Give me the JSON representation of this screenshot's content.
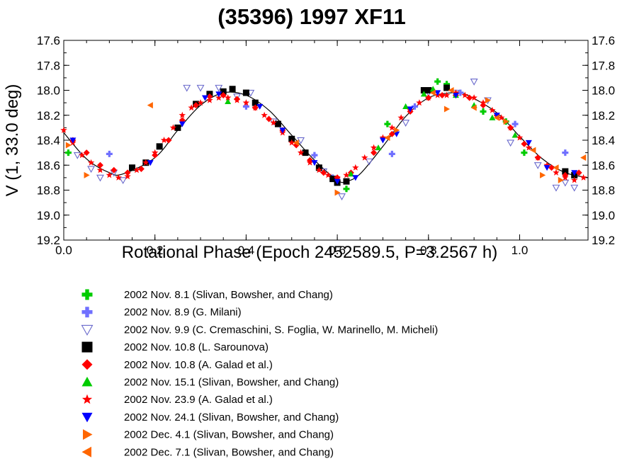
{
  "chart_data": {
    "type": "scatter",
    "title": "(35396) 1997 XF11",
    "xlabel": "Rotational Phase (Epoch 2452589.5, P=3.2567 h)",
    "ylabel": "V (1, 33.0 deg)",
    "xlim": [
      0.0,
      1.15
    ],
    "ylim": [
      17.6,
      19.2
    ],
    "y_inverted": true,
    "x_ticks": [
      "0.0",
      "0.2",
      "0.4",
      "0.6",
      "0.8",
      "1.0"
    ],
    "y_ticks": [
      "17.6",
      "17.8",
      "18.0",
      "18.2",
      "18.4",
      "18.6",
      "18.8",
      "19.0",
      "19.2"
    ],
    "grid": false,
    "legend_position": "below",
    "fit_curve": {
      "color": "#000000",
      "x": [
        0.0,
        0.05,
        0.1,
        0.13,
        0.2,
        0.25,
        0.3,
        0.35,
        0.4,
        0.45,
        0.5,
        0.55,
        0.6,
        0.62,
        0.65,
        0.7,
        0.75,
        0.8,
        0.85,
        0.88,
        0.95,
        1.0,
        1.05,
        1.1,
        1.15
      ],
      "y": [
        18.34,
        18.55,
        18.66,
        18.67,
        18.54,
        18.32,
        18.12,
        18.02,
        18.04,
        18.16,
        18.36,
        18.56,
        18.72,
        18.73,
        18.67,
        18.45,
        18.21,
        18.06,
        18.02,
        18.03,
        18.18,
        18.37,
        18.55,
        18.66,
        18.7
      ]
    },
    "series": [
      {
        "name": "2002 Nov. 8.1 (Slivan, Bowsher, and Chang)",
        "marker": "plus",
        "color": "#00cc00",
        "x": [
          0.01,
          0.62,
          0.71,
          0.82,
          0.84,
          0.92,
          0.97,
          1.01
        ],
        "y": [
          18.5,
          18.79,
          18.27,
          17.93,
          17.95,
          18.17,
          18.25,
          18.5
        ]
      },
      {
        "name": "2002 Nov. 8.9 (G. Milani)",
        "marker": "plus",
        "color": "#7070ff",
        "x": [
          0.1,
          0.4,
          0.55,
          0.59,
          0.72,
          0.77,
          0.87,
          0.99,
          1.1
        ],
        "y": [
          18.51,
          18.13,
          18.52,
          18.7,
          18.51,
          18.13,
          18.02,
          18.27,
          18.5
        ]
      },
      {
        "name": "2002 Nov. 9.9 (C. Cremaschini, S. Foglia, W. Marinello, M. Micheli)",
        "marker": "triangle-down-open",
        "color": "#6a6acc",
        "x": [
          0.03,
          0.06,
          0.08,
          0.11,
          0.13,
          0.27,
          0.3,
          0.34,
          0.38,
          0.41,
          0.46,
          0.52,
          0.57,
          0.61,
          0.67,
          0.75,
          0.8,
          0.86,
          0.9,
          0.93,
          0.98,
          1.04,
          1.08,
          1.1,
          1.12
        ],
        "y": [
          18.52,
          18.63,
          18.7,
          18.66,
          18.72,
          17.98,
          17.98,
          17.98,
          18.05,
          18.02,
          18.25,
          18.4,
          18.65,
          18.85,
          18.57,
          18.26,
          18.02,
          18.02,
          17.93,
          18.08,
          18.42,
          18.6,
          18.78,
          18.74,
          18.78
        ]
      },
      {
        "name": "2002 Nov. 10.8 (L. Sarounova)",
        "marker": "square",
        "color": "#000000",
        "x": [
          0.15,
          0.18,
          0.21,
          0.25,
          0.29,
          0.32,
          0.35,
          0.37,
          0.4,
          0.42,
          0.47,
          0.5,
          0.53,
          0.56,
          0.59,
          0.6,
          0.62,
          0.79,
          0.8,
          0.84,
          1.1,
          1.12
        ],
        "y": [
          18.62,
          18.58,
          18.45,
          18.3,
          18.11,
          18.03,
          18.01,
          17.99,
          18.02,
          18.1,
          18.27,
          18.39,
          18.5,
          18.62,
          18.71,
          18.74,
          18.73,
          18.0,
          18.0,
          17.98,
          18.65,
          18.68
        ]
      },
      {
        "name": "2002 Nov. 10.8 (A. Galad et al.)",
        "marker": "diamond",
        "color": "#ff0000",
        "x": [
          0.02,
          0.05,
          0.08,
          0.11,
          0.14,
          0.17,
          0.2,
          0.23,
          0.26,
          0.29,
          0.32,
          0.35,
          0.38,
          0.42,
          0.45,
          0.48,
          0.51,
          0.54,
          0.57,
          0.6,
          0.63,
          0.68,
          0.72,
          0.76,
          0.8,
          0.83,
          0.86,
          0.89,
          0.92,
          0.95,
          0.98,
          1.01,
          1.04,
          1.07,
          1.1,
          1.13
        ],
        "y": [
          18.4,
          18.5,
          18.6,
          18.64,
          18.66,
          18.63,
          18.52,
          18.4,
          18.24,
          18.12,
          18.05,
          18.04,
          18.07,
          18.14,
          18.23,
          18.32,
          18.44,
          18.56,
          18.66,
          18.7,
          18.66,
          18.5,
          18.35,
          18.17,
          18.06,
          18.04,
          18.04,
          18.06,
          18.12,
          18.2,
          18.3,
          18.43,
          18.54,
          18.62,
          18.68,
          18.66
        ]
      },
      {
        "name": "2002 Nov. 15.1 (Slivan, Bowsher, and Chang)",
        "marker": "triangle-up",
        "color": "#00cc00",
        "x": [
          0.36,
          0.63,
          0.69,
          0.75,
          0.79,
          0.81,
          0.86,
          0.9,
          0.94,
          0.99
        ],
        "y": [
          18.09,
          18.67,
          18.46,
          18.13,
          18.03,
          17.99,
          18.04,
          18.12,
          18.22,
          18.36
        ]
      },
      {
        "name": "2002 Nov. 23.9 (A. Galad et al.)",
        "marker": "star",
        "color": "#ff0000",
        "x": [
          0.0,
          0.02,
          0.04,
          0.06,
          0.08,
          0.1,
          0.12,
          0.14,
          0.16,
          0.18,
          0.2,
          0.22,
          0.24,
          0.26,
          0.28,
          0.3,
          0.32,
          0.34,
          0.36,
          0.38,
          0.4,
          0.42,
          0.44,
          0.46,
          0.48,
          0.5,
          0.52,
          0.54,
          0.56,
          0.58,
          0.6,
          0.62,
          0.64,
          0.66,
          0.68,
          0.7,
          0.72,
          0.74,
          0.76,
          0.78,
          0.8,
          0.82,
          0.84,
          0.86,
          0.88,
          0.9,
          0.92,
          0.94,
          0.96,
          0.98,
          1.0,
          1.02,
          1.04,
          1.06,
          1.08,
          1.1,
          1.12,
          1.14
        ],
        "y": [
          18.32,
          18.42,
          18.52,
          18.58,
          18.64,
          18.68,
          18.7,
          18.69,
          18.64,
          18.58,
          18.5,
          18.4,
          18.3,
          18.2,
          18.14,
          18.1,
          18.08,
          18.06,
          18.06,
          18.08,
          18.1,
          18.14,
          18.2,
          18.26,
          18.34,
          18.42,
          18.5,
          18.58,
          18.64,
          18.68,
          18.7,
          18.68,
          18.62,
          18.54,
          18.46,
          18.38,
          18.3,
          18.22,
          18.16,
          18.1,
          18.06,
          18.04,
          18.04,
          18.02,
          18.04,
          18.06,
          18.1,
          18.16,
          18.22,
          18.3,
          18.38,
          18.46,
          18.54,
          18.6,
          18.66,
          18.7,
          18.72,
          18.7
        ]
      },
      {
        "name": "2002 Nov. 24.1 (Slivan, Bowsher, and Chang)",
        "marker": "triangle-down",
        "color": "#0000ff",
        "x": [
          0.02,
          0.19,
          0.26,
          0.31,
          0.34,
          0.43,
          0.48,
          0.55,
          0.6,
          0.64,
          0.7,
          0.73,
          0.76,
          0.82,
          0.86,
          0.95,
          1.02,
          1.06,
          1.12
        ],
        "y": [
          18.4,
          18.58,
          18.27,
          18.06,
          18.03,
          18.13,
          18.32,
          18.58,
          18.73,
          18.7,
          18.4,
          18.35,
          18.15,
          18.02,
          18.04,
          18.2,
          18.42,
          18.62,
          18.66
        ]
      },
      {
        "name": "2002 Dec. 4.1 (Slivan, Bowsher, and Chang)",
        "marker": "triangle-right",
        "color": "#ff6600",
        "x": [
          0.01,
          0.05,
          0.6,
          0.73,
          0.84,
          0.93,
          0.97,
          1.05,
          1.09
        ],
        "y": [
          18.44,
          18.68,
          18.82,
          18.32,
          18.15,
          18.08,
          18.25,
          18.68,
          18.72
        ]
      },
      {
        "name": "2002 Dec. 7.1 (Slivan, Bowsher, and Chang)",
        "marker": "triangle-left",
        "color": "#ff6600",
        "x": [
          0.19,
          0.51,
          0.71,
          0.81,
          0.85,
          0.9,
          0.95,
          1.03,
          1.08,
          1.14
        ],
        "y": [
          18.12,
          18.42,
          18.38,
          18.02,
          18.0,
          18.14,
          18.22,
          18.48,
          18.62,
          18.54
        ]
      }
    ]
  }
}
